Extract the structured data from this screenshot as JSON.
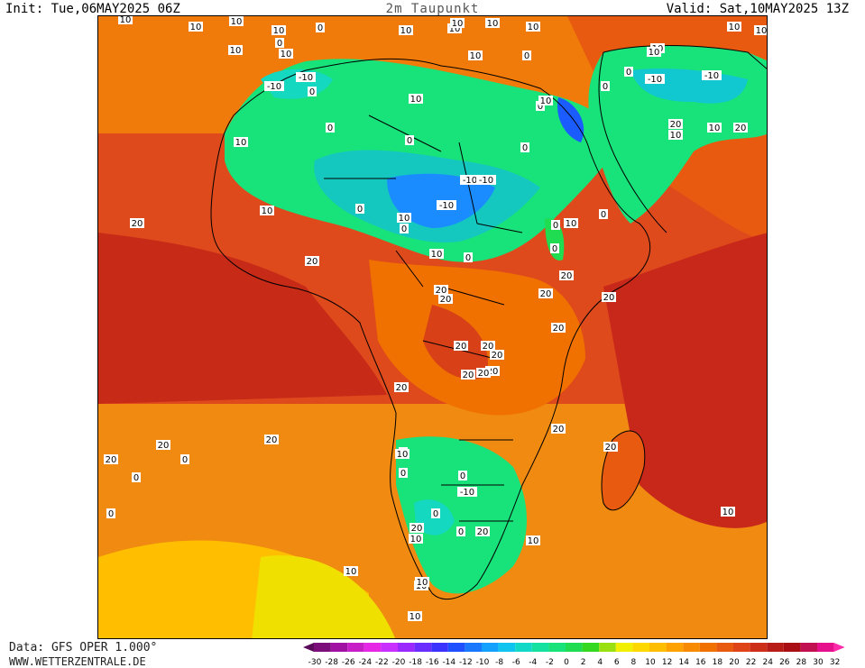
{
  "header": {
    "init": "Init: Tue,06MAY2025 06Z",
    "title": "2m Taupunkt",
    "valid": "Valid: Sat,10MAY2025 13Z"
  },
  "footer": {
    "data_source": "Data: GFS OPER 1.000°",
    "website": "WWW.WETTERZENTRALE.DE"
  },
  "legend": {
    "values": [
      "-30",
      "-28",
      "-26",
      "-24",
      "-22",
      "-20",
      "-18",
      "-16",
      "-14",
      "-12",
      "-10",
      "-8",
      "-6",
      "-4",
      "-2",
      "0",
      "2",
      "4",
      "6",
      "8",
      "10",
      "12",
      "14",
      "16",
      "18",
      "20",
      "22",
      "24",
      "26",
      "28",
      "30",
      "32"
    ],
    "colors": [
      "#5a0c5a",
      "#7b0e7b",
      "#a212a2",
      "#c81ec8",
      "#e628e6",
      "#c830ff",
      "#9a28ff",
      "#6a2cff",
      "#3a32ff",
      "#1e50ff",
      "#1a78ff",
      "#14a0ff",
      "#10c4f0",
      "#12d8c8",
      "#14e0a0",
      "#18e27a",
      "#20dc50",
      "#34d820",
      "#9ae010",
      "#f0f000",
      "#ffd800",
      "#ffbe00",
      "#ffa200",
      "#f88a00",
      "#f07000",
      "#e85a10",
      "#de4418",
      "#cc2e18",
      "#b81c16",
      "#a80e14",
      "#c01050",
      "#e6108c",
      "#ff2aa8"
    ]
  },
  "map_labels": [
    {
      "text": "10"
    },
    {
      "text": "10"
    },
    {
      "text": "10"
    },
    {
      "text": "10"
    },
    {
      "text": "10"
    },
    {
      "text": "10"
    },
    {
      "text": "10"
    },
    {
      "text": "10"
    },
    {
      "text": "10"
    },
    {
      "text": "10"
    },
    {
      "text": "10"
    },
    {
      "text": "10"
    },
    {
      "text": "10"
    },
    {
      "text": "0"
    },
    {
      "text": "10"
    },
    {
      "text": "0"
    },
    {
      "text": "10"
    },
    {
      "text": "0"
    },
    {
      "text": "-10"
    },
    {
      "text": "0"
    },
    {
      "text": "-10"
    },
    {
      "text": "0"
    },
    {
      "text": "-10"
    },
    {
      "text": "0"
    },
    {
      "text": "10"
    },
    {
      "text": "0"
    },
    {
      "text": "10"
    },
    {
      "text": "10"
    },
    {
      "text": "0"
    },
    {
      "text": "-10"
    },
    {
      "text": "20"
    },
    {
      "text": "10"
    },
    {
      "text": "10"
    },
    {
      "text": "20"
    },
    {
      "text": "0"
    },
    {
      "text": "0"
    },
    {
      "text": "0"
    },
    {
      "text": "-10"
    },
    {
      "text": "-10"
    },
    {
      "text": "10"
    },
    {
      "text": "-10"
    },
    {
      "text": "0"
    },
    {
      "text": "10"
    },
    {
      "text": "0"
    },
    {
      "text": "10"
    },
    {
      "text": "0"
    },
    {
      "text": "10"
    },
    {
      "text": "0"
    },
    {
      "text": "20"
    },
    {
      "text": "20"
    },
    {
      "text": "10"
    },
    {
      "text": "0"
    },
    {
      "text": "20"
    },
    {
      "text": "20"
    },
    {
      "text": "20"
    },
    {
      "text": "20"
    },
    {
      "text": "20"
    },
    {
      "text": "20"
    },
    {
      "text": "20"
    },
    {
      "text": "20"
    },
    {
      "text": "20"
    },
    {
      "text": "20"
    },
    {
      "text": "20"
    },
    {
      "text": "20"
    },
    {
      "text": "20"
    },
    {
      "text": "20"
    },
    {
      "text": "20"
    },
    {
      "text": "20"
    },
    {
      "text": "20"
    },
    {
      "text": "20"
    },
    {
      "text": "0"
    },
    {
      "text": "0"
    },
    {
      "text": "0"
    },
    {
      "text": "0"
    },
    {
      "text": "10"
    },
    {
      "text": "0"
    },
    {
      "text": "0"
    },
    {
      "text": "-10"
    },
    {
      "text": "0"
    },
    {
      "text": "0"
    },
    {
      "text": "20"
    },
    {
      "text": "20"
    },
    {
      "text": "10"
    },
    {
      "text": "10"
    },
    {
      "text": "10"
    },
    {
      "text": "10"
    },
    {
      "text": "10"
    },
    {
      "text": "10"
    },
    {
      "text": "10"
    }
  ]
}
